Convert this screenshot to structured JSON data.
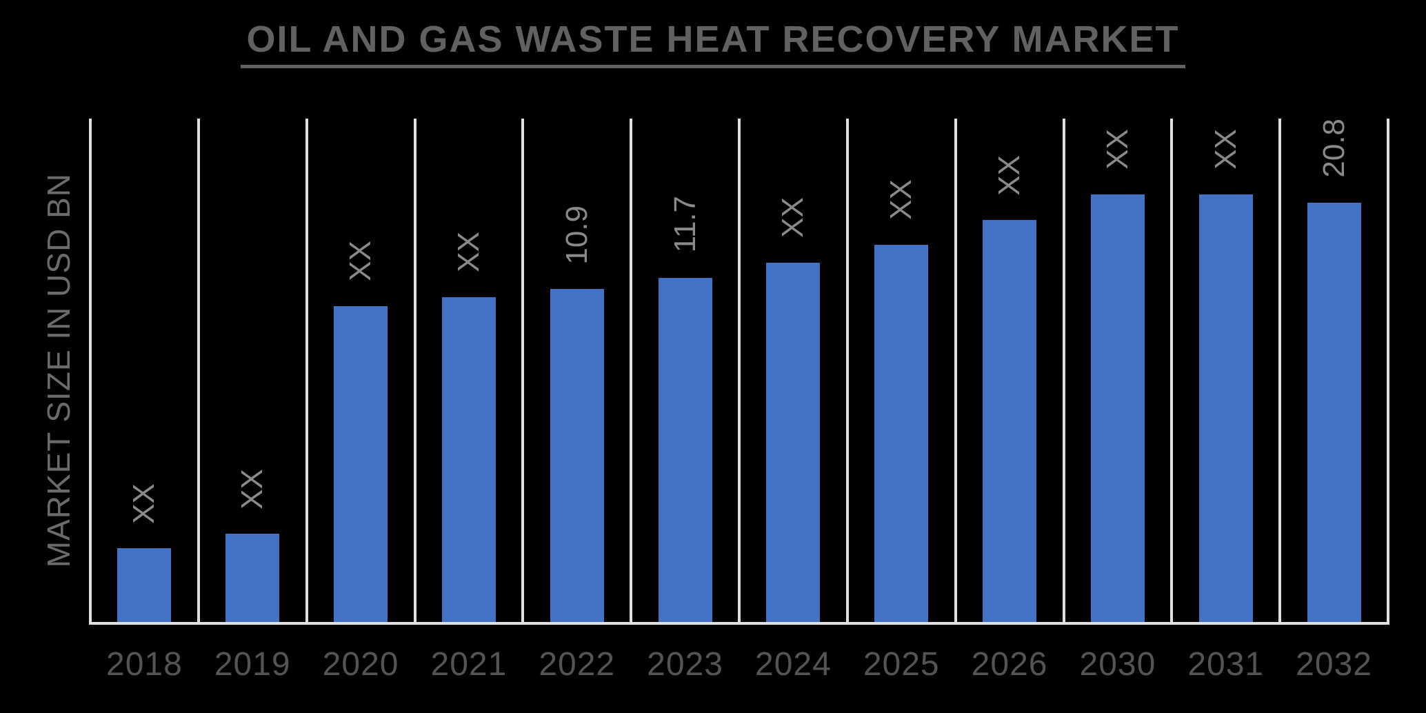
{
  "page": {
    "background": "#000000"
  },
  "chart_data": {
    "type": "bar",
    "title": "OIL AND GAS WASTE HEAT RECOVERY MARKET",
    "ylabel": "MARKET SIZE IN USD BN",
    "xlabel": "",
    "categories": [
      "2018",
      "2019",
      "2020",
      "2021",
      "2022",
      "2023",
      "2024",
      "2025",
      "2026",
      "2030",
      "2031",
      "2032"
    ],
    "bar_labels": [
      "XX",
      "XX",
      "XX",
      "XX",
      "10.9",
      "11.7",
      "XX",
      "XX",
      "XX",
      "XX",
      "XX",
      "20.8"
    ],
    "values_usd_bn": [
      null,
      null,
      null,
      null,
      10.9,
      11.7,
      null,
      null,
      null,
      null,
      null,
      20.8
    ],
    "bar_height_pct": [
      14.6,
      17.5,
      62.8,
      64.5,
      66.1,
      68.4,
      71.4,
      75.0,
      79.8,
      85.0,
      85.0,
      85.0
    ],
    "legend_position": "none",
    "grid": "vertical separators between categories, no horizontal gridlines, no y-axis tick values",
    "data_label_rotation": "reads bottom-to-top",
    "colors": {
      "background": "#000000",
      "bar": "#4472c4",
      "gridline": "#e0e0e0",
      "axis_line": "#e0e0e0",
      "title": "#616161",
      "x_axis_label": "#545454",
      "y_axis_title": "#6b6b6b",
      "data_label": "#8a8a8a"
    }
  }
}
